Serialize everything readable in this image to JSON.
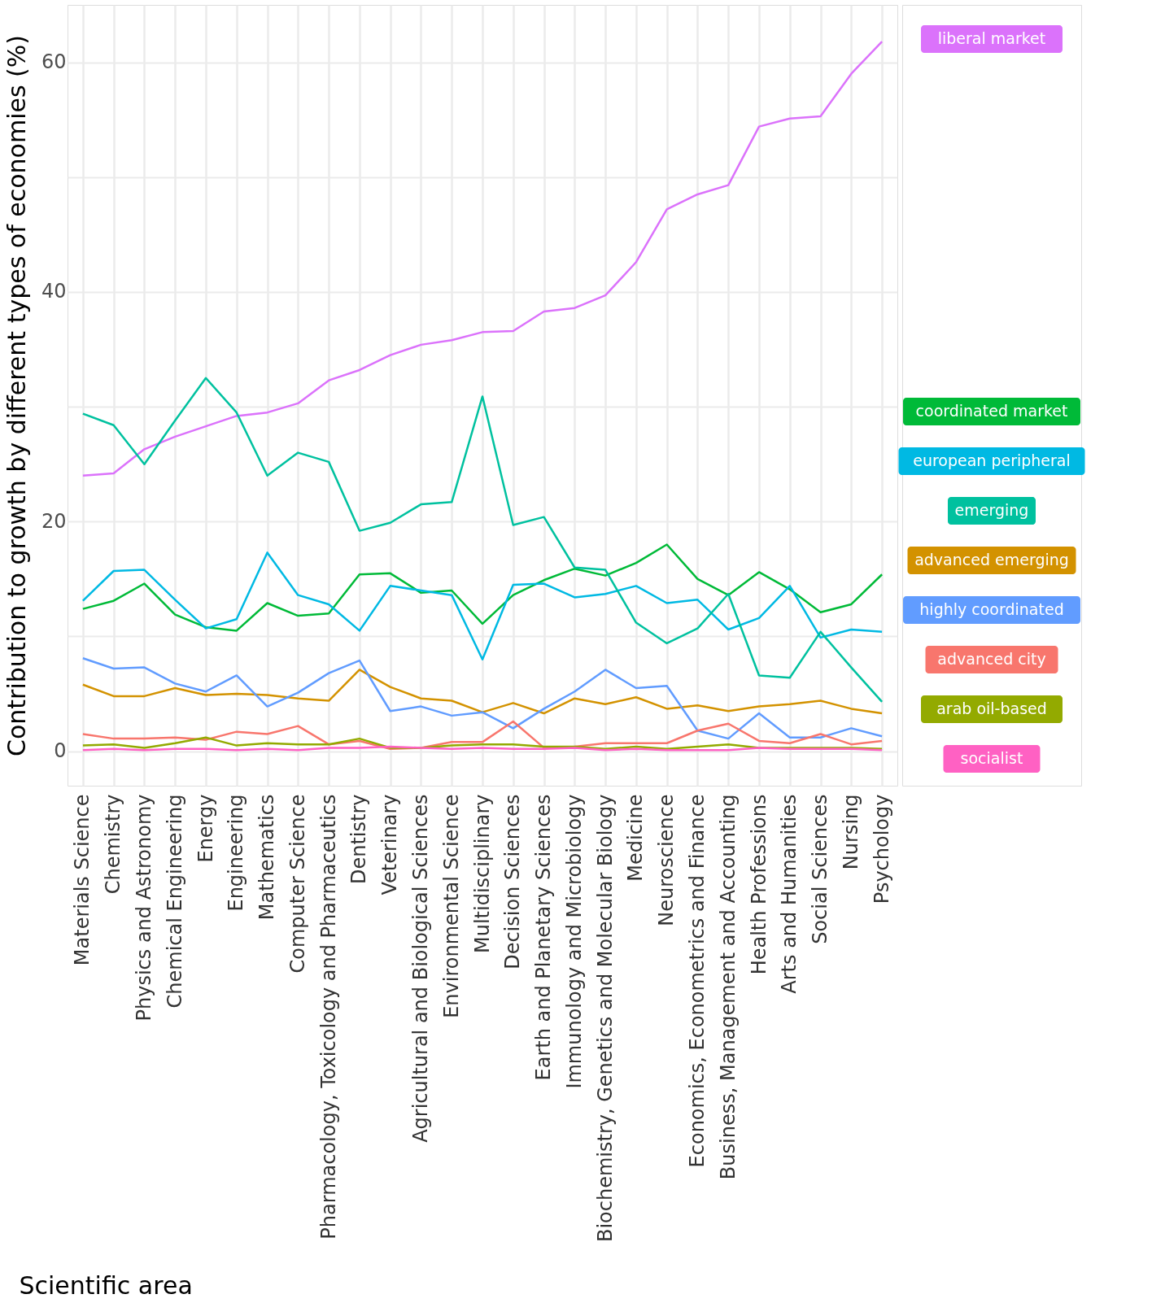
{
  "chart_data": {
    "type": "line",
    "xlabel": "Scientific area",
    "ylabel": "Contribution to growth by different types of economies (%)",
    "categories": [
      "Materials Science",
      "Chemistry",
      "Physics and Astronomy",
      "Chemical Engineering",
      "Energy",
      "Engineering",
      "Mathematics",
      "Computer Science",
      "Pharmacology, Toxicology and Pharmaceutics",
      "Dentistry",
      "Veterinary",
      "Agricultural and Biological Sciences",
      "Environmental Science",
      "Multidisciplinary",
      "Decision Sciences",
      "Earth and Planetary Sciences",
      "Immunology and Microbiology",
      "Biochemistry, Genetics and Molecular Biology",
      "Medicine",
      "Neuroscience",
      "Economics, Econometrics and Finance",
      "Business, Management and Accounting",
      "Health Professions",
      "Arts and Humanities",
      "Social Sciences",
      "Nursing",
      "Psychology"
    ],
    "series": [
      {
        "name": "liberal market",
        "color": "#db72fb",
        "values": [
          24.0,
          24.2,
          26.3,
          27.4,
          28.3,
          29.2,
          29.5,
          30.3,
          32.3,
          33.2,
          34.5,
          35.4,
          35.8,
          36.5,
          36.6,
          38.3,
          38.6,
          39.7,
          42.6,
          47.2,
          48.5,
          49.3,
          54.4,
          55.1,
          55.3,
          59.0,
          61.8
        ]
      },
      {
        "name": "coordinated market",
        "color": "#00ba38",
        "values": [
          12.4,
          13.1,
          14.6,
          11.9,
          10.8,
          10.5,
          12.9,
          11.8,
          12.0,
          15.4,
          15.5,
          13.8,
          14.0,
          11.1,
          13.6,
          14.9,
          15.9,
          15.3,
          16.4,
          18.0,
          15.0,
          13.6,
          15.6,
          14.1,
          12.1,
          12.8,
          15.4
        ]
      },
      {
        "name": "european peripheral",
        "color": "#00b9e3",
        "values": [
          13.1,
          15.7,
          15.8,
          13.2,
          10.7,
          11.5,
          17.3,
          13.6,
          12.8,
          10.5,
          14.4,
          14.0,
          13.6,
          8.0,
          14.5,
          14.6,
          13.4,
          13.7,
          14.4,
          12.9,
          13.2,
          10.6,
          11.6,
          14.4,
          9.9,
          10.6,
          10.4
        ]
      },
      {
        "name": "emerging",
        "color": "#00c19f",
        "values": [
          29.4,
          28.4,
          25.0,
          28.8,
          32.5,
          29.5,
          24.0,
          26.0,
          25.2,
          19.2,
          19.9,
          21.5,
          21.7,
          30.9,
          19.7,
          20.4,
          16.0,
          15.8,
          11.2,
          9.4,
          10.7,
          13.7,
          6.6,
          6.4,
          10.4,
          7.3,
          4.3
        ]
      },
      {
        "name": "advanced emerging",
        "color": "#d39200",
        "values": [
          5.8,
          4.8,
          4.8,
          5.5,
          4.9,
          5.0,
          4.9,
          4.6,
          4.4,
          7.1,
          5.6,
          4.6,
          4.4,
          3.4,
          4.2,
          3.3,
          4.6,
          4.1,
          4.7,
          3.7,
          4.0,
          3.5,
          3.9,
          4.1,
          4.4,
          3.7,
          3.3
        ]
      },
      {
        "name": "highly coordinated",
        "color": "#619cff",
        "values": [
          8.1,
          7.2,
          7.3,
          5.9,
          5.2,
          6.6,
          3.9,
          5.1,
          6.8,
          7.9,
          3.5,
          3.9,
          3.1,
          3.4,
          2.0,
          3.7,
          5.2,
          7.1,
          5.5,
          5.7,
          1.8,
          1.1,
          3.3,
          1.2,
          1.2,
          2.0,
          1.3
        ]
      },
      {
        "name": "advanced city",
        "color": "#f8766d",
        "values": [
          1.5,
          1.1,
          1.1,
          1.2,
          1.0,
          1.7,
          1.5,
          2.2,
          0.6,
          0.9,
          0.2,
          0.3,
          0.8,
          0.8,
          2.6,
          0.3,
          0.4,
          0.7,
          0.7,
          0.7,
          1.8,
          2.4,
          0.9,
          0.7,
          1.5,
          0.6,
          0.9
        ]
      },
      {
        "name": "arab oil-based",
        "color": "#93aa00",
        "values": [
          0.5,
          0.6,
          0.3,
          0.7,
          1.2,
          0.5,
          0.7,
          0.6,
          0.6,
          1.1,
          0.3,
          0.3,
          0.5,
          0.6,
          0.6,
          0.4,
          0.4,
          0.2,
          0.4,
          0.2,
          0.4,
          0.6,
          0.3,
          0.3,
          0.3,
          0.3,
          0.2
        ]
      },
      {
        "name": "socialist",
        "color": "#ff61c3",
        "values": [
          0.1,
          0.2,
          0.1,
          0.2,
          0.2,
          0.1,
          0.2,
          0.1,
          0.3,
          0.3,
          0.4,
          0.3,
          0.2,
          0.3,
          0.2,
          0.2,
          0.3,
          0.1,
          0.2,
          0.1,
          0.1,
          0.1,
          0.3,
          0.2,
          0.2,
          0.2,
          0.1
        ]
      }
    ],
    "ylim": [
      -3,
      65
    ],
    "yticks": [
      0,
      {
        "value": 10,
        "label": null
      },
      20,
      {
        "value": 30,
        "label": null
      },
      40,
      {
        "value": 50,
        "label": null
      },
      60
    ],
    "grid": true,
    "legend": "right",
    "marker": "none",
    "line_style": "solid"
  }
}
